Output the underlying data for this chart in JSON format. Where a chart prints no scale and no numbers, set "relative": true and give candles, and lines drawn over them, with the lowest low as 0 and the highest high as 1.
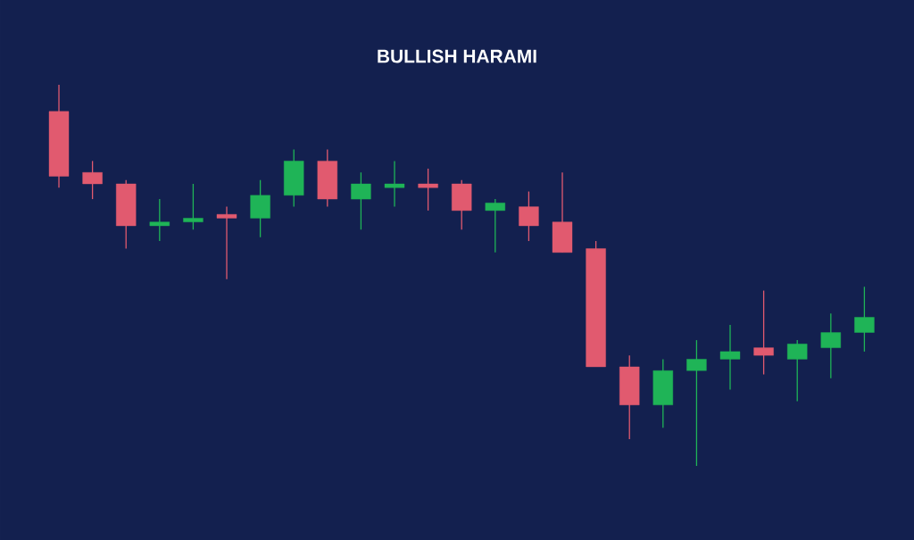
{
  "chart_data": {
    "type": "candlestick",
    "title": "BULLISH HARAMI",
    "relative": true,
    "categories": [
      null,
      null,
      null,
      null,
      null,
      null,
      null,
      null,
      null,
      null,
      null,
      null,
      null,
      null,
      null,
      null,
      null,
      null,
      null,
      null,
      null,
      null,
      null,
      null,
      null
    ],
    "ohlc": [
      [
        0.93,
        1.0,
        0.73,
        0.76
      ],
      [
        0.77,
        0.8,
        0.7,
        0.74
      ],
      [
        0.74,
        0.75,
        0.57,
        0.63
      ],
      [
        0.63,
        0.7,
        0.59,
        0.64
      ],
      [
        0.64,
        0.74,
        0.62,
        0.65
      ],
      [
        0.66,
        0.68,
        0.49,
        0.65
      ],
      [
        0.65,
        0.75,
        0.6,
        0.71
      ],
      [
        0.71,
        0.83,
        0.68,
        0.8
      ],
      [
        0.8,
        0.83,
        0.68,
        0.7
      ],
      [
        0.7,
        0.77,
        0.62,
        0.74
      ],
      [
        0.73,
        0.8,
        0.68,
        0.74
      ],
      [
        0.74,
        0.78,
        0.67,
        0.73
      ],
      [
        0.74,
        0.75,
        0.62,
        0.67
      ],
      [
        0.67,
        0.7,
        0.56,
        0.69
      ],
      [
        0.68,
        0.72,
        0.59,
        0.63
      ],
      [
        0.64,
        0.77,
        0.56,
        0.56
      ],
      [
        0.57,
        0.59,
        0.26,
        0.26
      ],
      [
        0.26,
        0.29,
        0.07,
        0.16
      ],
      [
        0.16,
        0.28,
        0.1,
        0.25
      ],
      [
        0.25,
        0.33,
        0.0,
        0.28
      ],
      [
        0.28,
        0.37,
        0.2,
        0.3
      ],
      [
        0.31,
        0.46,
        0.24,
        0.29
      ],
      [
        0.28,
        0.33,
        0.17,
        0.32
      ],
      [
        0.31,
        0.4,
        0.23,
        0.35
      ],
      [
        0.35,
        0.47,
        0.3,
        0.39
      ]
    ],
    "colors": [
      "#e15a6f",
      "#e15a6f",
      "#e15a6f",
      "#1fb457",
      "#1fb457",
      "#e15a6f",
      "#1fb457",
      "#1fb457",
      "#e15a6f",
      "#1fb457",
      "#1fb457",
      "#e15a6f",
      "#e15a6f",
      "#1fb457",
      "#e15a6f",
      "#e15a6f",
      "#e15a6f",
      "#e15a6f",
      "#1fb457",
      "#1fb457",
      "#1fb457",
      "#e15a6f",
      "#1fb457",
      "#1fb457",
      "#1fb457"
    ]
  }
}
